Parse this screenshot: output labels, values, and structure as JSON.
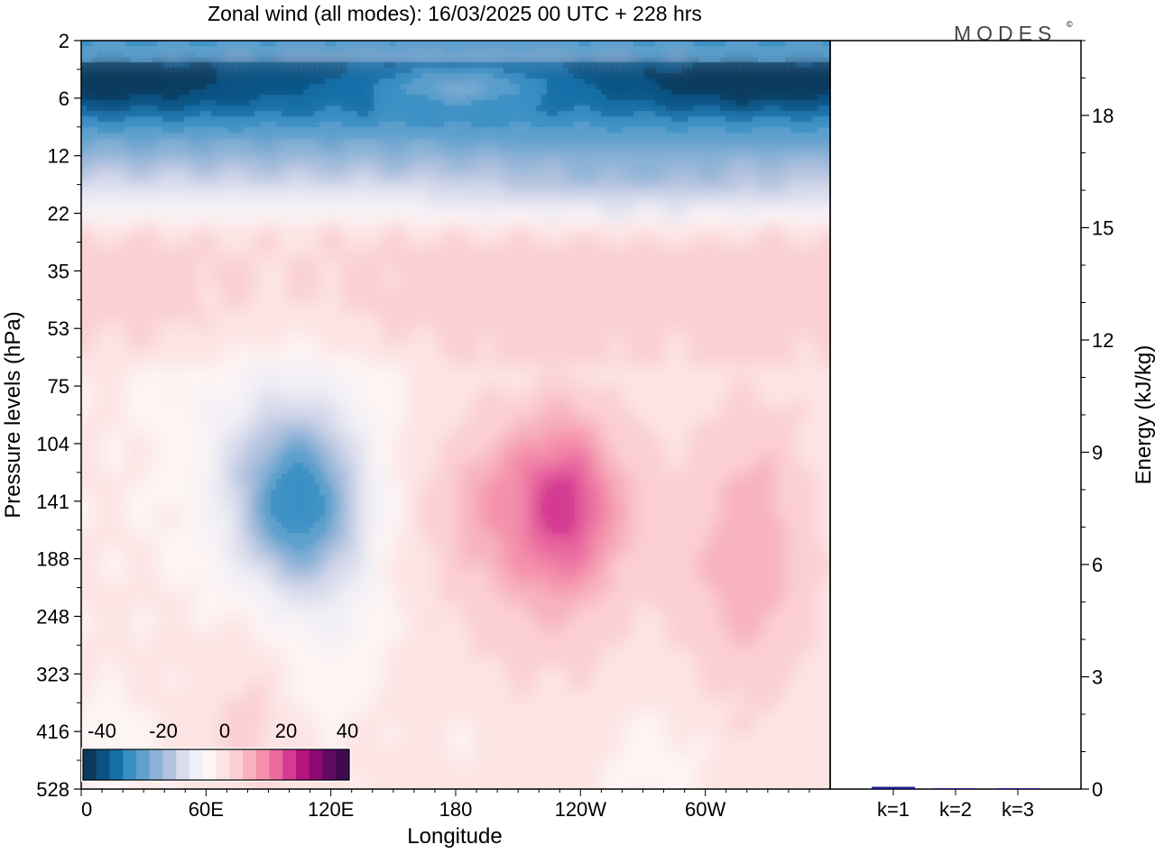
{
  "chart_data": [
    {
      "type": "heatmap",
      "title": "Zonal wind (all modes):  16/03/2025  00 UTC  + 228 hrs",
      "xlabel": "Longitude",
      "ylabel": "Pressure levels (hPa)",
      "x_ticks": [
        "0",
        "60E",
        "120E",
        "180",
        "120W",
        "60W"
      ],
      "x_tick_longitudes_east": [
        0,
        60,
        120,
        180,
        240,
        300
      ],
      "x_range_longitude_east": [
        0,
        360
      ],
      "y_ticks": [
        "2",
        "6",
        "12",
        "22",
        "35",
        "53",
        "75",
        "104",
        "141",
        "188",
        "248",
        "323",
        "416",
        "528"
      ],
      "y_range_hPa": [
        2,
        528
      ],
      "colorbar": {
        "tick_labels": [
          "-40",
          "-20",
          "0",
          "20",
          "40"
        ],
        "placement": "bottom-left",
        "colors": [
          "#0b3a5c",
          "#0a5384",
          "#1570a8",
          "#3b8fc4",
          "#5fa0cd",
          "#8bb2d6",
          "#b2c2df",
          "#d9dcec",
          "#f1eff6",
          "#fdf4f4",
          "#fde4e4",
          "#fbcfd3",
          "#f7b3bd",
          "#f490ab",
          "#ea6aa0",
          "#d63a92",
          "#b5137e",
          "#8a0a72",
          "#5e0a62",
          "#3f0a52"
        ]
      },
      "features": [
        {
          "feature": "strong easterly jet",
          "longitude_east": [
            0,
            90
          ],
          "hPa": [
            3,
            9
          ],
          "value": -45
        },
        {
          "feature": "strong easterly jet",
          "longitude_east": [
            295,
            360
          ],
          "hPa": [
            3,
            10
          ],
          "value": -45
        },
        {
          "feature": "easterly core",
          "longitude_east": [
            90,
            110
          ],
          "hPa": [
            100,
            200
          ],
          "value": -30
        },
        {
          "feature": "westerly core",
          "longitude_east": [
            215,
            255
          ],
          "hPa": [
            95,
            240
          ],
          "value": 25
        },
        {
          "feature": "westerly core",
          "longitude_east": [
            315,
            340
          ],
          "hPa": [
            110,
            270
          ],
          "value": 12
        }
      ]
    },
    {
      "type": "bar",
      "categories": [
        "k=1",
        "k=2",
        "k=3"
      ],
      "values": [
        0.06,
        0.02,
        0.01
      ],
      "ylabel": "Energy (kJ/kg)",
      "y_ticks": [
        "0",
        "3",
        "6",
        "9",
        "12",
        "15",
        "18"
      ],
      "ylim": [
        0,
        20
      ],
      "bar_color": "#1a1a8c",
      "grid": false
    }
  ],
  "logo": {
    "text": "MODES",
    "mark": "©"
  }
}
